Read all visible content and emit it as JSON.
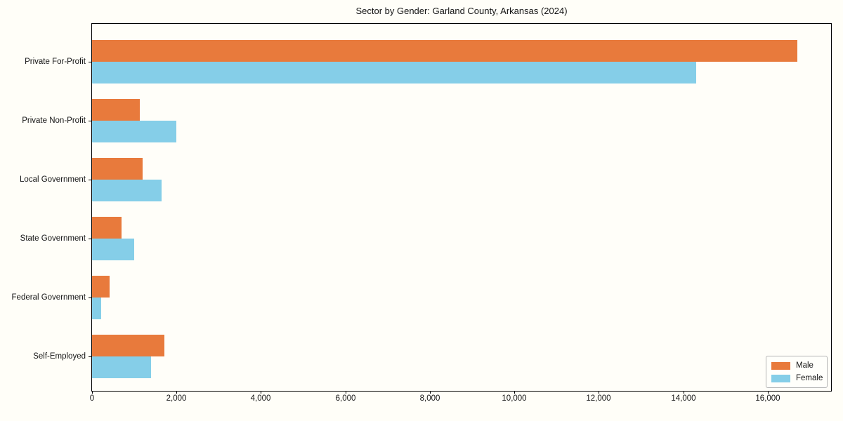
{
  "chart_data": {
    "type": "bar",
    "orientation": "horizontal",
    "title": "Sector by Gender: Garland County, Arkansas (2024)",
    "categories": [
      "Private For-Profit",
      "Private Non-Profit",
      "Local Government",
      "State Government",
      "Federal Government",
      "Self-Employed"
    ],
    "series": [
      {
        "name": "Male",
        "color": "#e87a3c",
        "values": [
          16700,
          1130,
          1200,
          700,
          410,
          1710
        ]
      },
      {
        "name": "Female",
        "color": "#85cee8",
        "values": [
          14300,
          2000,
          1640,
          1000,
          220,
          1400
        ]
      }
    ],
    "xlabel": "",
    "ylabel": "",
    "xlim": [
      0,
      17500
    ],
    "x_ticks": [
      0,
      2000,
      4000,
      6000,
      8000,
      10000,
      12000,
      14000,
      16000
    ],
    "x_tick_labels": [
      "0",
      "2,000",
      "4,000",
      "6,000",
      "8,000",
      "10,000",
      "12,000",
      "14,000",
      "16,000"
    ],
    "grid": false,
    "legend": {
      "position": "lower right"
    }
  },
  "colors": {
    "axis": "#000000",
    "background": "#fffef8",
    "legend_border": "#b4b4b4"
  }
}
